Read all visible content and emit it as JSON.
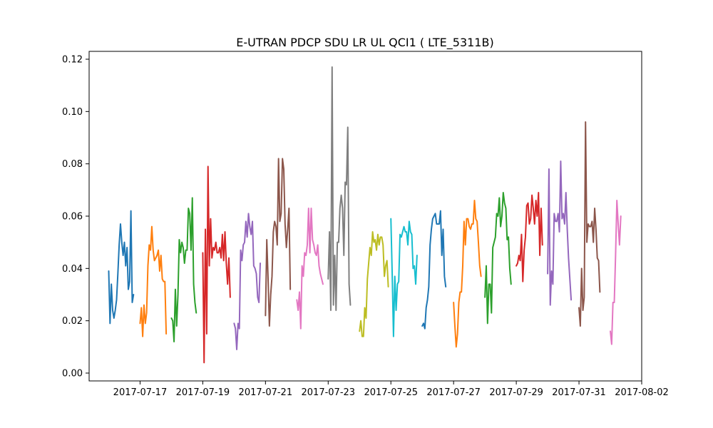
{
  "chart_data": {
    "type": "line",
    "title": "E-UTRAN PDCP SDU LR UL QCI1 ( LTE_5311B)",
    "xlabel": "",
    "ylabel": "",
    "x_axis": {
      "type": "time",
      "range": [
        "2017-07-15T09:00",
        "2017-08-02T00:00"
      ]
    },
    "xlim": [
      "2017-07-15T09:00",
      "2017-08-02T00:00"
    ],
    "ylim": [
      -0.003,
      0.123
    ],
    "grid": false,
    "legend": "none",
    "x_ticks": [
      "2017-07-17",
      "2017-07-19",
      "2017-07-21",
      "2017-07-23",
      "2017-07-25",
      "2017-07-27",
      "2017-07-29",
      "2017-07-31",
      "2017-08-02"
    ],
    "y_ticks": [
      "0.00",
      "0.02",
      "0.04",
      "0.06",
      "0.08",
      "0.10",
      "0.12"
    ],
    "series": [
      {
        "color": "#1f77b4",
        "start": "2017-07-16T00:00",
        "values": [
          0.039,
          0.019,
          0.034,
          0.024,
          0.021,
          0.024,
          0.028,
          0.038,
          0.049,
          0.057,
          0.05,
          0.045,
          0.05,
          0.041,
          0.048,
          0.032,
          0.035,
          0.062,
          0.027,
          0.03
        ]
      },
      {
        "color": "#ff7f0e",
        "start": "2017-07-17T00:00",
        "values": [
          0.019,
          0.025,
          0.014,
          0.026,
          0.019,
          0.023,
          0.041,
          0.049,
          0.047,
          0.056,
          0.047,
          0.043,
          0.044,
          0.045,
          0.047,
          0.039,
          0.045,
          0.036,
          0.035,
          0.035,
          0.015
        ]
      },
      {
        "color": "#2ca02c",
        "start": "2017-07-18T00:00",
        "values": [
          0.021,
          0.02,
          0.012,
          0.032,
          0.018,
          0.03,
          0.051,
          0.046,
          0.05,
          0.048,
          0.042,
          0.047,
          0.047,
          0.063,
          0.061,
          0.047,
          0.067,
          0.034,
          0.027,
          0.023
        ]
      },
      {
        "color": "#d62728",
        "start": "2017-07-19T00:00",
        "values": [
          0.046,
          0.004,
          0.055,
          0.015,
          0.079,
          0.041,
          0.059,
          0.044,
          0.048,
          0.047,
          0.05,
          0.046,
          0.046,
          0.048,
          0.044,
          0.053,
          0.043,
          0.054,
          0.042,
          0.034,
          0.044,
          0.029
        ]
      },
      {
        "color": "#9467bd",
        "start": "2017-07-20T00:00",
        "values": [
          0.019,
          0.017,
          0.009,
          0.019,
          0.017,
          0.047,
          0.043,
          0.049,
          0.05,
          0.058,
          0.052,
          0.061,
          0.056,
          0.053,
          0.058,
          0.041,
          0.04,
          0.038,
          0.029,
          0.027,
          0.042
        ]
      },
      {
        "color": "#8c564b",
        "start": "2017-07-21T00:00",
        "values": [
          0.022,
          0.051,
          0.036,
          0.018,
          0.03,
          0.037,
          0.054,
          0.058,
          0.056,
          0.049,
          0.082,
          0.058,
          0.061,
          0.082,
          0.078,
          0.057,
          0.048,
          0.055,
          0.063,
          0.032
        ]
      },
      {
        "color": "#e377c2",
        "start": "2017-07-22T00:00",
        "values": [
          0.028,
          0.024,
          0.031,
          0.017,
          0.041,
          0.037,
          0.046,
          0.045,
          0.049,
          0.063,
          0.046,
          0.063,
          0.051,
          0.049,
          0.046,
          0.045,
          0.049,
          0.041,
          0.038,
          0.036,
          0.034
        ]
      },
      {
        "color": "#7f7f7f",
        "start": "2017-07-23T00:00",
        "values": [
          0.036,
          0.054,
          0.024,
          0.117,
          0.026,
          0.045,
          0.024,
          0.05,
          0.05,
          0.063,
          0.068,
          0.063,
          0.045,
          0.073,
          0.072,
          0.094,
          0.034,
          0.026
        ]
      },
      {
        "color": "#bcbd22",
        "start": "2017-07-24T00:00",
        "values": [
          0.016,
          0.02,
          0.014,
          0.014,
          0.025,
          0.021,
          0.036,
          0.042,
          0.048,
          0.045,
          0.054,
          0.05,
          0.051,
          0.047,
          0.053,
          0.049,
          0.052,
          0.052,
          0.049,
          0.037,
          0.041,
          0.043,
          0.033
        ]
      },
      {
        "color": "#17becf",
        "start": "2017-07-25T00:00",
        "values": [
          0.059,
          0.038,
          0.014,
          0.037,
          0.024,
          0.034,
          0.035,
          0.053,
          0.052,
          0.054,
          0.056,
          0.054,
          0.054,
          0.049,
          0.058,
          0.054,
          0.053,
          0.04,
          0.041,
          0.034,
          0.045
        ]
      },
      {
        "color": "#1f77b4",
        "start": "2017-07-26T00:00",
        "values": [
          0.018,
          0.019,
          0.017,
          0.025,
          0.028,
          0.033,
          0.049,
          0.055,
          0.059,
          0.06,
          0.061,
          0.057,
          0.057,
          0.057,
          0.062,
          0.045,
          0.055,
          0.037,
          0.033
        ]
      },
      {
        "color": "#ff7f0e",
        "start": "2017-07-27T00:00",
        "values": [
          0.027,
          0.018,
          0.01,
          0.015,
          0.027,
          0.031,
          0.031,
          0.041,
          0.058,
          0.049,
          0.059,
          0.059,
          0.056,
          0.055,
          0.057,
          0.057,
          0.066,
          0.059,
          0.058,
          0.05,
          0.041,
          0.037
        ]
      },
      {
        "color": "#2ca02c",
        "start": "2017-07-28T00:00",
        "values": [
          0.029,
          0.041,
          0.019,
          0.034,
          0.034,
          0.023,
          0.048,
          0.05,
          0.052,
          0.061,
          0.06,
          0.067,
          0.056,
          0.06,
          0.069,
          0.065,
          0.063,
          0.051,
          0.052,
          0.04,
          0.034
        ]
      },
      {
        "color": "#d62728",
        "start": "2017-07-29T00:00",
        "values": [
          0.041,
          0.042,
          0.045,
          0.043,
          0.053,
          0.035,
          0.047,
          0.052,
          0.064,
          0.065,
          0.057,
          0.059,
          0.068,
          0.063,
          0.057,
          0.066,
          0.06,
          0.069,
          0.045,
          0.063,
          0.049
        ]
      },
      {
        "color": "#9467bd",
        "start": "2017-07-30T00:00",
        "values": [
          0.038,
          0.078,
          0.026,
          0.039,
          0.034,
          0.061,
          0.058,
          0.058,
          0.061,
          0.054,
          0.081,
          0.059,
          0.061,
          0.057,
          0.069,
          0.055,
          0.044,
          0.036,
          0.028
        ]
      },
      {
        "color": "#8c564b",
        "start": "2017-07-31T00:00",
        "values": [
          0.025,
          0.018,
          0.04,
          0.024,
          0.029,
          0.096,
          0.05,
          0.057,
          0.056,
          0.056,
          0.058,
          0.05,
          0.063,
          0.055,
          0.044,
          0.043,
          0.031
        ]
      },
      {
        "color": "#e377c2",
        "start": "2017-08-01T00:00",
        "values": [
          0.016,
          0.011,
          0.027,
          0.027,
          0.045,
          0.066,
          0.057,
          0.049,
          0.06
        ]
      }
    ]
  }
}
